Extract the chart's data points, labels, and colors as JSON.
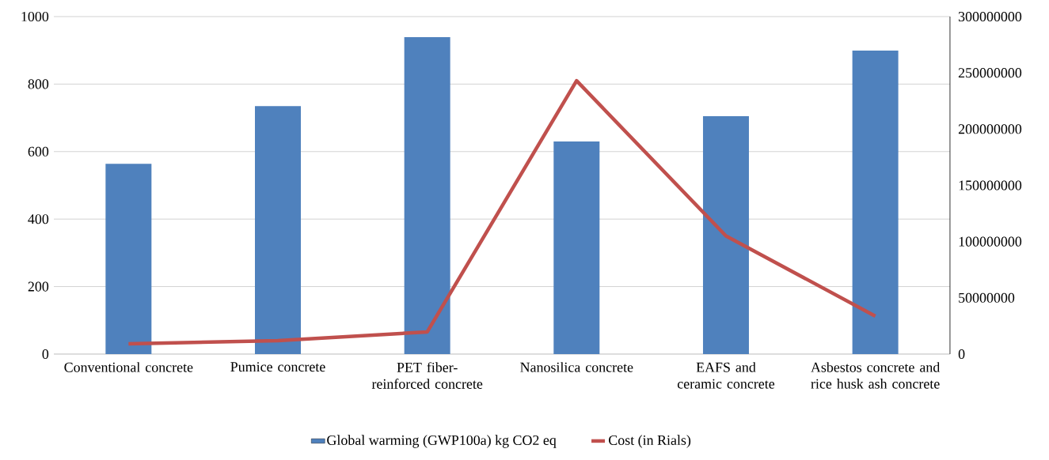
{
  "chart_data": {
    "type": "bar",
    "categories": [
      "Conventional concrete",
      "Pumice concrete",
      "PET fiber-reinforced concrete",
      "Nanosilica concrete",
      "EAFS and ceramic concrete",
      "Asbestos concrete and rice husk ash concrete"
    ],
    "series": [
      {
        "name": "Global warming (GWP100a) kg CO2 eq",
        "color": "#4f81bd",
        "values": [
          564,
          735,
          939,
          630,
          705,
          899
        ]
      },
      {
        "name": "Cost (in Rials)",
        "type": "line",
        "axis": "y2",
        "color": "#c0504d",
        "line_style": "solid",
        "marker": "none",
        "values": [
          9100000,
          12000000,
          19700000,
          243000000,
          105000000,
          33700000
        ]
      }
    ],
    "ylim": [
      0,
      1000
    ],
    "yticks": [
      0,
      200,
      400,
      600,
      800,
      1000
    ],
    "y2lim": [
      0,
      300000000
    ],
    "y2ticks": [
      0,
      50000000,
      100000000,
      150000000,
      200000000,
      250000000,
      300000000
    ],
    "grid": "y",
    "legend": "bottom"
  }
}
